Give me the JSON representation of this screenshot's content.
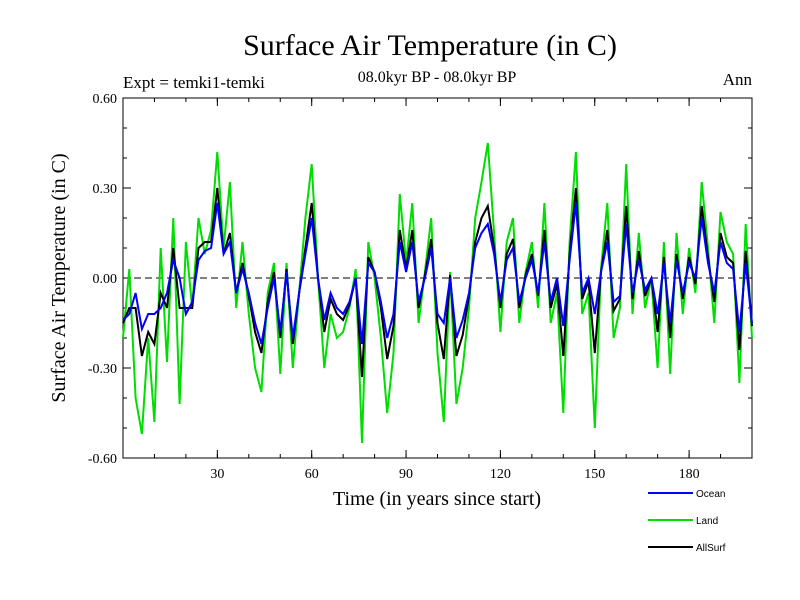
{
  "chart_data": {
    "type": "line",
    "title": "Surface Air Temperature (in C)",
    "subtitle": "08.0kyr BP - 08.0kyr BP",
    "left_label": "Expt = temki1-temki",
    "right_label": "Ann",
    "xlabel": "Time (in years since start)",
    "ylabel": "Surface Air Temperature (in C)",
    "xlim": [
      0,
      200
    ],
    "ylim": [
      -0.6,
      0.6
    ],
    "x_ticks": [
      30,
      60,
      90,
      120,
      150,
      180
    ],
    "x_tick_labels": [
      "30",
      "60",
      "90",
      "120",
      "150",
      "180"
    ],
    "y_ticks": [
      -0.6,
      -0.3,
      0.0,
      0.3,
      0.6
    ],
    "y_tick_labels": [
      "-0.60",
      "-0.30",
      "0.00",
      "0.30",
      "0.60"
    ],
    "zero_line": "dashed",
    "legend_position": "bottom-right",
    "series": [
      {
        "name": "Ocean",
        "color": "#0000ff",
        "x": [
          0,
          2,
          4,
          6,
          8,
          10,
          12,
          14,
          16,
          18,
          20,
          22,
          24,
          26,
          28,
          30,
          32,
          34,
          36,
          38,
          40,
          42,
          44,
          46,
          48,
          50,
          52,
          54,
          56,
          58,
          60,
          62,
          64,
          66,
          68,
          70,
          72,
          74,
          76,
          78,
          80,
          82,
          84,
          86,
          88,
          90,
          92,
          94,
          96,
          98,
          100,
          102,
          104,
          106,
          108,
          110,
          112,
          114,
          116,
          118,
          120,
          122,
          124,
          126,
          128,
          130,
          132,
          134,
          136,
          138,
          140,
          142,
          144,
          146,
          148,
          150,
          152,
          154,
          156,
          158,
          160,
          162,
          164,
          166,
          168,
          170,
          172,
          174,
          176,
          178,
          180,
          182,
          184,
          186,
          188,
          190,
          192,
          194,
          196,
          198,
          200
        ],
        "values": [
          -0.14,
          -0.12,
          -0.05,
          -0.17,
          -0.12,
          -0.12,
          -0.1,
          -0.05,
          0.06,
          0.0,
          -0.12,
          -0.08,
          0.06,
          0.09,
          0.1,
          0.25,
          0.08,
          0.12,
          -0.05,
          0.03,
          -0.05,
          -0.15,
          -0.22,
          -0.1,
          0.0,
          -0.18,
          0.02,
          -0.2,
          -0.05,
          0.08,
          0.2,
          0.0,
          -0.14,
          -0.05,
          -0.1,
          -0.12,
          -0.08,
          0.0,
          -0.22,
          0.05,
          0.02,
          -0.08,
          -0.2,
          -0.12,
          0.12,
          0.02,
          0.12,
          -0.08,
          0.0,
          0.1,
          -0.12,
          -0.15,
          0.0,
          -0.2,
          -0.14,
          -0.05,
          0.1,
          0.15,
          0.18,
          0.08,
          -0.08,
          0.06,
          0.1,
          -0.08,
          0.0,
          0.06,
          -0.05,
          0.12,
          -0.08,
          0.0,
          -0.16,
          0.06,
          0.25,
          -0.05,
          0.0,
          -0.12,
          0.02,
          0.12,
          -0.08,
          -0.06,
          0.18,
          -0.05,
          0.06,
          -0.04,
          0.0,
          -0.12,
          0.05,
          -0.15,
          0.06,
          -0.05,
          0.05,
          0.0,
          0.2,
          0.05,
          -0.05,
          0.12,
          0.05,
          0.03,
          -0.18,
          0.05,
          -0.15
        ]
      },
      {
        "name": "Land",
        "color": "#00dd00",
        "x": [
          0,
          2,
          4,
          6,
          8,
          10,
          12,
          14,
          16,
          18,
          20,
          22,
          24,
          26,
          28,
          30,
          32,
          34,
          36,
          38,
          40,
          42,
          44,
          46,
          48,
          50,
          52,
          54,
          56,
          58,
          60,
          62,
          64,
          66,
          68,
          70,
          72,
          74,
          76,
          78,
          80,
          82,
          84,
          86,
          88,
          90,
          92,
          94,
          96,
          98,
          100,
          102,
          104,
          106,
          108,
          110,
          112,
          114,
          116,
          118,
          120,
          122,
          124,
          126,
          128,
          130,
          132,
          134,
          136,
          138,
          140,
          142,
          144,
          146,
          148,
          150,
          152,
          154,
          156,
          158,
          160,
          162,
          164,
          166,
          168,
          170,
          172,
          174,
          176,
          178,
          180,
          182,
          184,
          186,
          188,
          190,
          192,
          194,
          196,
          198,
          200
        ],
        "values": [
          -0.2,
          0.03,
          -0.4,
          -0.52,
          -0.2,
          -0.48,
          0.1,
          -0.28,
          0.2,
          -0.42,
          0.12,
          -0.1,
          0.2,
          0.08,
          0.16,
          0.42,
          0.1,
          0.32,
          -0.1,
          0.12,
          -0.12,
          -0.3,
          -0.38,
          -0.05,
          0.05,
          -0.32,
          0.05,
          -0.3,
          -0.05,
          0.2,
          0.38,
          0.0,
          -0.3,
          -0.12,
          -0.2,
          -0.18,
          -0.1,
          0.03,
          -0.55,
          0.12,
          0.0,
          -0.2,
          -0.45,
          -0.25,
          0.28,
          0.05,
          0.25,
          -0.15,
          0.02,
          0.2,
          -0.25,
          -0.48,
          0.02,
          -0.42,
          -0.3,
          -0.1,
          0.2,
          0.32,
          0.45,
          0.15,
          -0.18,
          0.12,
          0.2,
          -0.15,
          0.02,
          0.12,
          -0.1,
          0.25,
          -0.15,
          -0.05,
          -0.45,
          0.12,
          0.42,
          -0.12,
          -0.05,
          -0.5,
          0.03,
          0.25,
          -0.2,
          -0.1,
          0.38,
          -0.12,
          0.15,
          -0.1,
          0.0,
          -0.3,
          0.12,
          -0.32,
          0.15,
          -0.12,
          0.1,
          -0.05,
          0.32,
          0.1,
          -0.15,
          0.22,
          0.12,
          0.08,
          -0.35,
          0.18,
          -0.2
        ]
      },
      {
        "name": "AllSurf",
        "color": "#000000",
        "x": [
          0,
          2,
          4,
          6,
          8,
          10,
          12,
          14,
          16,
          18,
          20,
          22,
          24,
          26,
          28,
          30,
          32,
          34,
          36,
          38,
          40,
          42,
          44,
          46,
          48,
          50,
          52,
          54,
          56,
          58,
          60,
          62,
          64,
          66,
          68,
          70,
          72,
          74,
          76,
          78,
          80,
          82,
          84,
          86,
          88,
          90,
          92,
          94,
          96,
          98,
          100,
          102,
          104,
          106,
          108,
          110,
          112,
          114,
          116,
          118,
          120,
          122,
          124,
          126,
          128,
          130,
          132,
          134,
          136,
          138,
          140,
          142,
          144,
          146,
          148,
          150,
          152,
          154,
          156,
          158,
          160,
          162,
          164,
          166,
          168,
          170,
          172,
          174,
          176,
          178,
          180,
          182,
          184,
          186,
          188,
          190,
          192,
          194,
          196,
          198,
          200
        ],
        "values": [
          -0.15,
          -0.1,
          -0.1,
          -0.26,
          -0.18,
          -0.22,
          -0.05,
          -0.1,
          0.1,
          -0.1,
          -0.1,
          -0.1,
          0.1,
          0.12,
          0.12,
          0.3,
          0.08,
          0.15,
          -0.05,
          0.05,
          -0.06,
          -0.18,
          -0.25,
          -0.08,
          0.02,
          -0.2,
          0.03,
          -0.22,
          -0.05,
          0.1,
          0.25,
          0.0,
          -0.18,
          -0.07,
          -0.12,
          -0.14,
          -0.09,
          0.0,
          -0.33,
          0.07,
          0.02,
          -0.1,
          -0.27,
          -0.16,
          0.16,
          0.03,
          0.16,
          -0.1,
          0.01,
          0.13,
          -0.15,
          -0.27,
          0.01,
          -0.26,
          -0.19,
          -0.06,
          0.12,
          0.2,
          0.24,
          0.1,
          -0.1,
          0.08,
          0.13,
          -0.1,
          0.01,
          0.08,
          -0.06,
          0.16,
          -0.1,
          -0.02,
          -0.26,
          0.08,
          0.3,
          -0.07,
          -0.01,
          -0.25,
          0.02,
          0.16,
          -0.11,
          -0.07,
          0.24,
          -0.07,
          0.09,
          -0.06,
          0.0,
          -0.18,
          0.07,
          -0.2,
          0.08,
          -0.07,
          0.07,
          -0.02,
          0.24,
          0.07,
          -0.08,
          0.15,
          0.07,
          0.05,
          -0.24,
          0.09,
          -0.16
        ]
      }
    ]
  }
}
